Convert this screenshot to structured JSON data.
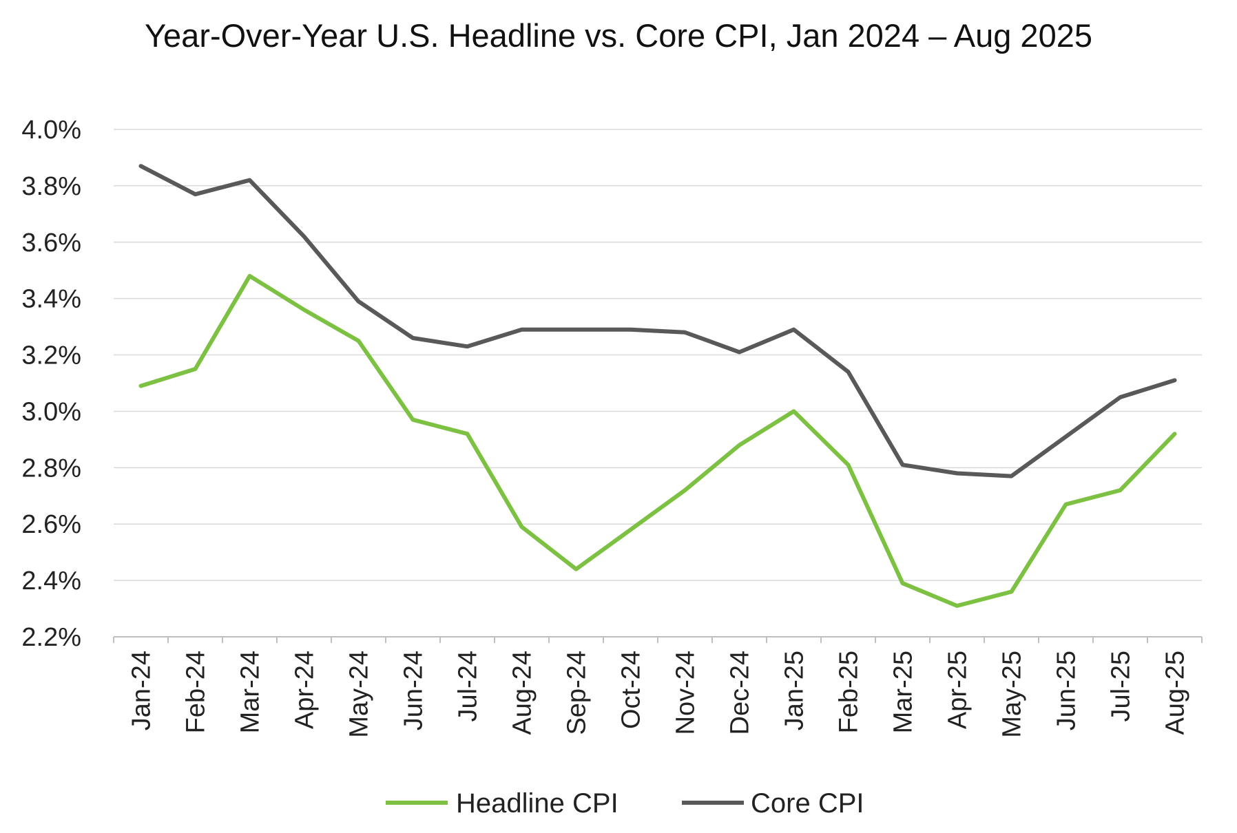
{
  "chart_data": {
    "type": "line",
    "title": "Year-Over-Year U.S. Headline vs. Core CPI, Jan 2024 – Aug 2025",
    "xlabel": "",
    "ylabel": "",
    "categories": [
      "Jan-24",
      "Feb-24",
      "Mar-24",
      "Apr-24",
      "May-24",
      "Jun-24",
      "Jul-24",
      "Aug-24",
      "Sep-24",
      "Oct-24",
      "Nov-24",
      "Dec-24",
      "Jan-25",
      "Feb-25",
      "Mar-25",
      "Apr-25",
      "May-25",
      "Jun-25",
      "Jul-25",
      "Aug-25"
    ],
    "ylim": [
      2.2,
      4.0
    ],
    "yticks": [
      2.2,
      2.4,
      2.6,
      2.8,
      3.0,
      3.2,
      3.4,
      3.6,
      3.8,
      4.0
    ],
    "ytick_labels": [
      "2.2%",
      "2.4%",
      "2.6%",
      "2.8%",
      "3.0%",
      "3.2%",
      "3.4%",
      "3.6%",
      "3.8%",
      "4.0%"
    ],
    "grid": true,
    "legend_position": "bottom-center",
    "series": [
      {
        "name": "Headline CPI",
        "color": "#7cc142",
        "values": [
          3.09,
          3.15,
          3.48,
          3.36,
          3.25,
          2.97,
          2.92,
          2.59,
          2.44,
          2.58,
          2.72,
          2.88,
          3.0,
          2.81,
          2.39,
          2.31,
          2.36,
          2.67,
          2.72,
          2.92
        ]
      },
      {
        "name": "Core CPI",
        "color": "#595959",
        "values": [
          3.87,
          3.77,
          3.82,
          3.62,
          3.39,
          3.26,
          3.23,
          3.29,
          3.29,
          3.29,
          3.28,
          3.21,
          3.29,
          3.14,
          2.81,
          2.78,
          2.77,
          2.91,
          3.05,
          3.11
        ]
      }
    ]
  }
}
